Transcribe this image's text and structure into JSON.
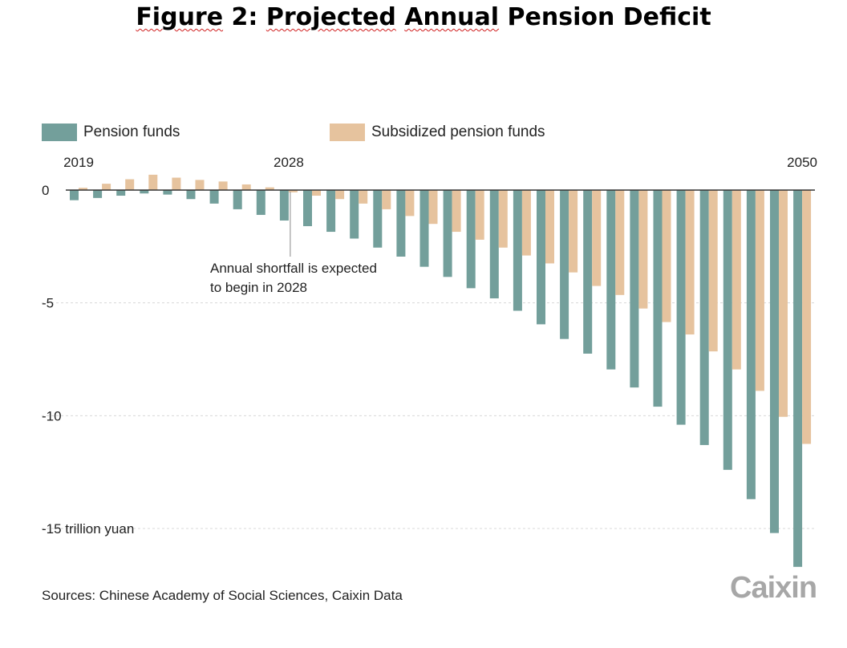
{
  "title_parts": [
    {
      "text": "Figure",
      "spell": true
    },
    {
      "text": " 2: ",
      "spell": false
    },
    {
      "text": "Projected",
      "spell": true
    },
    {
      "text": " ",
      "spell": false
    },
    {
      "text": "Annual",
      "spell": true
    },
    {
      "text": " Pension Deficit",
      "spell": false
    }
  ],
  "colors": {
    "pension": "#739f9b",
    "subsidized": "#e6c39e",
    "grid": "#d8d8d8",
    "axis": "#333333"
  },
  "chart_data": {
    "type": "bar",
    "title": "Figure 2: Projected Annual Pension Deficit",
    "categories": [
      2019,
      2020,
      2021,
      2022,
      2023,
      2024,
      2025,
      2026,
      2027,
      2028,
      2029,
      2030,
      2031,
      2032,
      2033,
      2034,
      2035,
      2036,
      2037,
      2038,
      2039,
      2040,
      2041,
      2042,
      2043,
      2044,
      2045,
      2046,
      2047,
      2048,
      2049,
      2050
    ],
    "x_tick_labels": [
      {
        "year": 2019,
        "label": "2019"
      },
      {
        "year": 2028,
        "label": "2028"
      },
      {
        "year": 2050,
        "label": "2050"
      }
    ],
    "series": [
      {
        "name": "Pension funds",
        "values": [
          -0.45,
          -0.35,
          -0.25,
          -0.15,
          -0.2,
          -0.4,
          -0.6,
          -0.85,
          -1.1,
          -1.35,
          -1.6,
          -1.85,
          -2.15,
          -2.55,
          -2.95,
          -3.4,
          -3.85,
          -4.35,
          -4.8,
          -5.35,
          -5.95,
          -6.6,
          -7.25,
          -7.95,
          -8.75,
          -9.6,
          -10.4,
          -11.3,
          -12.4,
          -13.7,
          -15.2,
          -16.7
        ]
      },
      {
        "name": "Subsidized pension funds",
        "values": [
          0.1,
          0.28,
          0.48,
          0.68,
          0.55,
          0.45,
          0.38,
          0.25,
          0.12,
          -0.1,
          -0.25,
          -0.4,
          -0.6,
          -0.85,
          -1.15,
          -1.5,
          -1.85,
          -2.2,
          -2.55,
          -2.9,
          -3.25,
          -3.65,
          -4.25,
          -4.65,
          -5.25,
          -5.85,
          -6.4,
          -7.15,
          -7.95,
          -8.9,
          -10.05,
          -11.25
        ]
      }
    ],
    "y_ticks": [
      {
        "value": 0,
        "label": "0"
      },
      {
        "value": -5,
        "label": "-5"
      },
      {
        "value": -10,
        "label": "-10"
      },
      {
        "value": -15,
        "label": "-15 trillion yuan"
      }
    ],
    "ylim": [
      -17,
      1
    ],
    "ylabel": "trillion yuan",
    "annotation": {
      "year": 2028,
      "lines": [
        "Annual shortfall is expected",
        "to begin in 2028"
      ]
    },
    "grid": true,
    "legend_position": "top-left"
  },
  "legend": {
    "pension_label": "Pension funds",
    "subsidized_label": "Subsidized pension funds"
  },
  "source": "Sources: Chinese Academy of Social Sciences, Caixin Data",
  "brand": "Caixin"
}
